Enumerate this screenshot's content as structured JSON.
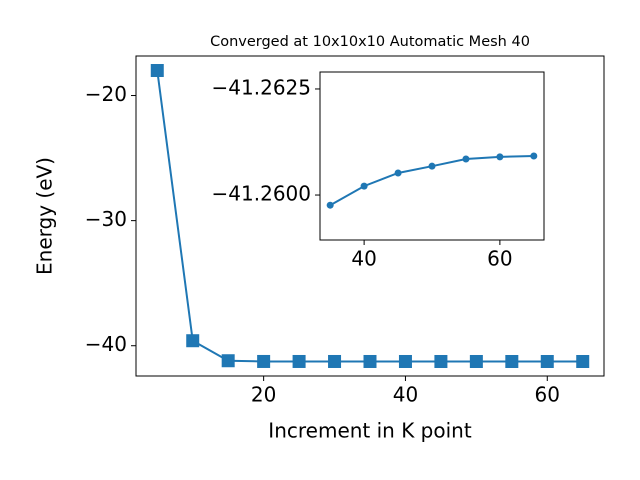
{
  "chart_data": [
    {
      "type": "line",
      "title": "Converged at 10x10x10 Automatic Mesh 40",
      "x_label": "Increment in K point",
      "y_label": "Energy (eV)",
      "marker": "square",
      "x": [
        5,
        10,
        15,
        20,
        25,
        30,
        35,
        40,
        45,
        50,
        55,
        60,
        65
      ],
      "series": [
        {
          "color": "#1f77b4",
          "values": [
            -18.0,
            -39.6,
            -41.2,
            -41.258,
            -41.259,
            -41.2595,
            -41.25976,
            -41.26021,
            -41.26052,
            -41.26068,
            -41.26085,
            -41.2609,
            -41.26092
          ]
        }
      ],
      "xlim": [
        2,
        68
      ],
      "ylim": [
        -42.42,
        -16.84
      ],
      "xticks": [
        20,
        40,
        60
      ],
      "yticks": [
        {
          "value": -20,
          "label": "−20"
        },
        {
          "value": -30,
          "label": "−30"
        },
        {
          "value": -40,
          "label": "−40"
        }
      ]
    },
    {
      "type": "line",
      "marker": "circle",
      "x": [
        35,
        40,
        45,
        50,
        55,
        60,
        65
      ],
      "series": [
        {
          "color": "#1f77b4",
          "values": [
            -41.25976,
            -41.26021,
            -41.26052,
            -41.26068,
            -41.26085,
            -41.2609,
            -41.26092
          ]
        }
      ],
      "xlim": [
        33.5,
        66.5
      ],
      "ylim": [
        -41.25894,
        -41.2629
      ],
      "xticks": [
        40,
        60
      ],
      "yticks": [
        {
          "value": -41.2625,
          "label": "−41.2625"
        },
        {
          "value": -41.26,
          "label": "−41.2600"
        }
      ]
    }
  ]
}
